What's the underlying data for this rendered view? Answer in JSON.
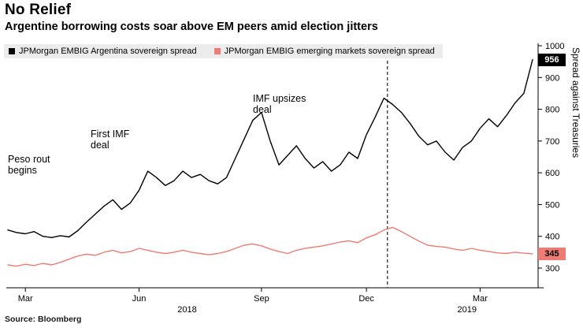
{
  "header": {
    "title": "No Relief",
    "subtitle": "Argentine borrowing costs soar above EM peers amid election jitters"
  },
  "footer": {
    "source": "Source: Bloomberg"
  },
  "chart_data": {
    "type": "line",
    "title": "No Relief",
    "ylabel": "Spread against Treasuries",
    "ylim": [
      300,
      1000
    ],
    "yticks": [
      300,
      400,
      500,
      600,
      700,
      800,
      900,
      1000
    ],
    "x_month_ticks": [
      {
        "label": "Mar",
        "index": 2
      },
      {
        "label": "Jun",
        "index": 15
      },
      {
        "label": "Sep",
        "index": 29
      },
      {
        "label": "Dec",
        "index": 41
      },
      {
        "label": "Mar",
        "index": 54
      }
    ],
    "x_year_labels": [
      {
        "label": "2018",
        "index": 20.5
      },
      {
        "label": "2019",
        "index": 52.5
      }
    ],
    "event_line_index": 43.4,
    "series": [
      {
        "name": "JPMorgan EMBIG Argentina sovereign spread",
        "color": "#000000",
        "last_label": "956",
        "label_text_color": "#ffffff",
        "values": [
          420,
          412,
          408,
          415,
          400,
          396,
          402,
          398,
          418,
          445,
          470,
          495,
          515,
          485,
          505,
          545,
          605,
          585,
          560,
          575,
          605,
          585,
          595,
          575,
          565,
          585,
          645,
          705,
          765,
          790,
          700,
          625,
          655,
          685,
          645,
          615,
          635,
          605,
          625,
          665,
          645,
          720,
          775,
          835,
          815,
          790,
          755,
          715,
          688,
          700,
          665,
          640,
          680,
          700,
          740,
          770,
          745,
          780,
          820,
          850,
          956
        ]
      },
      {
        "name": "JPMorgan EMBIG emerging markets sovereign spread",
        "color": "#ee7c74",
        "last_label": "345",
        "label_text_color": "#000000",
        "values": [
          310,
          306,
          312,
          308,
          315,
          310,
          318,
          328,
          338,
          344,
          340,
          350,
          356,
          348,
          352,
          362,
          356,
          350,
          346,
          350,
          356,
          350,
          346,
          342,
          346,
          352,
          362,
          372,
          376,
          370,
          360,
          352,
          346,
          356,
          362,
          366,
          370,
          376,
          382,
          386,
          380,
          395,
          405,
          420,
          428,
          415,
          400,
          385,
          372,
          368,
          366,
          360,
          356,
          362,
          356,
          352,
          348,
          346,
          350,
          347,
          345
        ]
      }
    ],
    "annotations": [
      {
        "text": "Peso rout\nbegins",
        "index": 0,
        "value": 660
      },
      {
        "text": "First IMF\ndeal",
        "index": 9.5,
        "value": 739
      },
      {
        "text": "IMF upsizes\ndeal",
        "index": 28,
        "value": 851
      }
    ]
  }
}
